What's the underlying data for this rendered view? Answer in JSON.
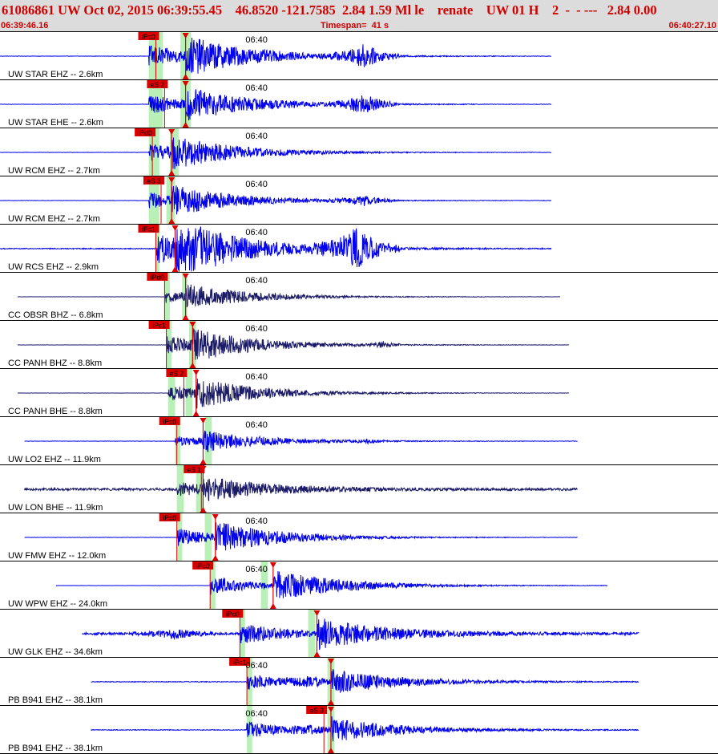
{
  "header": {
    "title": "61086861 UW Oct 02, 2015 06:39:55.45    46.8520 -121.7585  2.84 1.59 Ml le    renate    UW 01 H    2  -  - ---   2.84 0.00",
    "start_time": "06:39:46.16",
    "timespan": "Timespan=  41 s",
    "end_time": "06:40:27.10"
  },
  "chart_data": {
    "type": "line",
    "title": "",
    "x_axis": {
      "start": "06:39:46.16",
      "end": "06:40:27.10",
      "span_s": 41,
      "minute_mark": "06:40",
      "minute_mark_offset_s": 13.84
    },
    "colors": {
      "trace_uw": "#0000ee",
      "trace_cc": "#1a1a66",
      "pick": "#dd0000",
      "pick_window": "#b8f0b8",
      "separator": "#000000"
    },
    "traces": [
      {
        "label": "UW STAR EHZ -- 2.6km",
        "time_label": "06:40",
        "pick_labels": [
          "iPc0"
        ],
        "pick_times": [
          8.9
        ],
        "windows": [
          [
            8.5,
            9.3
          ],
          [
            10.3,
            10.9
          ]
        ],
        "s_arrival": 10.6,
        "data_start": 0.0,
        "data_end": 31.5,
        "amp": 0.7,
        "noise": 0.006,
        "events": [
          [
            20.8,
            0.5,
            2.0
          ]
        ],
        "color": "trace_uw"
      },
      {
        "label": "UW STAR EHE -- 2.6km",
        "time_label": "06:40",
        "pick_labels": [
          "eS 2"
        ],
        "pick_times": [
          9.4
        ],
        "windows": [
          [
            8.5,
            9.3
          ],
          [
            10.3,
            10.9
          ]
        ],
        "s_arrival": 10.6,
        "data_start": 0.0,
        "data_end": 31.5,
        "amp": 0.6,
        "noise": 0.006,
        "events": [
          [
            20.8,
            0.45,
            2.0
          ]
        ],
        "color": "trace_uw"
      },
      {
        "label": "UW RCM EHZ -- 2.7km",
        "time_label": "06:40",
        "pick_labels": [
          "iPd0"
        ],
        "pick_times": [
          8.7
        ],
        "windows": [
          [
            8.5,
            9.1
          ],
          [
            9.7,
            10.2
          ]
        ],
        "s_arrival": 9.8,
        "data_start": 0.0,
        "data_end": 31.5,
        "amp": 0.55,
        "noise": 0.006,
        "events": [],
        "color": "trace_uw"
      },
      {
        "label": "UW RCM EHZ -- 2.7km",
        "time_label": "06:40",
        "pick_labels": [
          "eS 3"
        ],
        "pick_times": [
          9.2
        ],
        "windows": [
          [
            8.5,
            9.1
          ],
          [
            9.5,
            10.0
          ]
        ],
        "s_arrival": 9.8,
        "data_start": 0.0,
        "data_end": 31.5,
        "amp": 0.5,
        "noise": 0.006,
        "events": [
          [
            20.8,
            0.2,
            2.0
          ]
        ],
        "color": "trace_uw"
      },
      {
        "label": "UW RCS EHZ -- 2.9km",
        "time_label": "06:40",
        "pick_labels": [
          "iPc1"
        ],
        "pick_times": [
          8.9
        ],
        "windows": [
          [
            8.9,
            9.1
          ]
        ],
        "s_arrival": 10.0,
        "data_start": 0.0,
        "data_end": 31.5,
        "amp": 1.0,
        "noise": 0.02,
        "events": [
          [
            20.3,
            0.85,
            2.5
          ]
        ],
        "color": "trace_uw"
      },
      {
        "label": "CC OBSR BHZ -- 6.8km",
        "time_label": "06:40",
        "pick_labels": [
          "iPd0"
        ],
        "pick_times": [
          9.4
        ],
        "windows": [
          [
            9.4,
            9.7
          ],
          [
            10.4,
            10.7
          ]
        ],
        "s_arrival": 10.6,
        "data_start": 1.0,
        "data_end": 32.0,
        "amp": 0.4,
        "noise": 0.004,
        "events": [],
        "color": "trace_cc"
      },
      {
        "label": "CC PANH BHZ -- 8.8km",
        "time_label": "06:40",
        "pick_labels": [
          "iPc1"
        ],
        "pick_times": [
          9.5
        ],
        "windows": [
          [
            9.5,
            9.8
          ],
          [
            10.8,
            11.2
          ]
        ],
        "s_arrival": 11.0,
        "data_start": 1.0,
        "data_end": 32.5,
        "amp": 0.55,
        "noise": 0.004,
        "events": [
          [
            21.9,
            0.12,
            1.0
          ]
        ],
        "color": "trace_cc"
      },
      {
        "label": "CC PANH BHE -- 8.8km",
        "time_label": "06:40",
        "pick_labels": [
          "eS 2"
        ],
        "pick_times": [
          10.5
        ],
        "windows": [
          [
            9.6,
            10.0
          ],
          [
            10.6,
            11.0
          ]
        ],
        "s_arrival": 11.2,
        "data_start": 1.0,
        "data_end": 32.5,
        "amp": 0.5,
        "noise": 0.004,
        "events": [],
        "color": "trace_cc"
      },
      {
        "label": "UW LO2 EHZ -- 11.9km",
        "time_label": "06:40",
        "pick_labels": [
          "iPc0"
        ],
        "pick_times": [
          10.1
        ],
        "windows": [
          [
            10.0,
            10.3
          ],
          [
            11.7,
            12.1
          ]
        ],
        "s_arrival": 11.6,
        "data_start": 1.4,
        "data_end": 33.0,
        "amp": 0.35,
        "noise": 0.006,
        "events": [
          [
            21.0,
            0.08,
            1.0
          ]
        ],
        "color": "trace_uw"
      },
      {
        "label": "UW LON BHE -- 11.9km",
        "time_label": "",
        "pick_labels": [
          "eS 1"
        ],
        "pick_times": [
          11.5
        ],
        "windows": [
          [
            10.1,
            10.5
          ],
          [
            11.2,
            11.6
          ]
        ],
        "s_arrival": 11.6,
        "data_start": 1.4,
        "data_end": 33.0,
        "amp": 0.4,
        "noise": 0.05,
        "events": [],
        "color": "trace_cc"
      },
      {
        "label": "UW FMW EHZ -- 12.0km",
        "time_label": "06:40",
        "pick_labels": [
          "iPc0"
        ],
        "pick_times": [
          10.1
        ],
        "windows": [
          [
            10.1,
            10.4
          ],
          [
            11.7,
            12.1
          ]
        ],
        "s_arrival": 12.3,
        "data_start": 1.4,
        "data_end": 33.0,
        "amp": 0.55,
        "noise": 0.006,
        "events": [],
        "color": "trace_uw"
      },
      {
        "label": "UW WPW EHZ -- 24.0km",
        "time_label": "06:40",
        "pick_labels": [
          "iPc0"
        ],
        "pick_times": [
          12.0
        ],
        "windows": [
          [
            12.0,
            12.3
          ],
          [
            14.9,
            15.3
          ]
        ],
        "s_arrival": 15.6,
        "data_start": 3.2,
        "data_end": 34.7,
        "amp": 0.6,
        "noise": 0.005,
        "events": [],
        "color": "trace_uw"
      },
      {
        "label": "UW GLK EHZ -- 34.6km",
        "time_label": "",
        "pick_labels": [
          "iPc0"
        ],
        "pick_times": [
          13.7
        ],
        "windows": [
          [
            13.7,
            14.0
          ],
          [
            17.6,
            18.0
          ]
        ],
        "s_arrival": 18.1,
        "data_start": 4.7,
        "data_end": 36.5,
        "amp": 0.6,
        "noise": 0.05,
        "events": [
          [
            10.0,
            0.2,
            2.5
          ]
        ],
        "color": "trace_uw"
      },
      {
        "label": "PB B941 EHZ -- 38.1km",
        "time_label": "06:40",
        "pick_labels": [
          "iPc1"
        ],
        "pick_times": [
          14.1
        ],
        "windows": [
          [
            14.1,
            14.4
          ],
          [
            18.7,
            19.1
          ]
        ],
        "s_arrival": 18.9,
        "data_start": 5.2,
        "data_end": 36.5,
        "amp": 0.5,
        "noise": 0.015,
        "events": [
          [
            17.8,
            0.2,
            1.5
          ]
        ],
        "color": "trace_uw"
      },
      {
        "label": "PB B941 EHZ -- 38.1km",
        "time_label": "06:40",
        "pick_labels": [
          "eS 3"
        ],
        "pick_times": [
          18.5
        ],
        "windows": [
          [
            14.1,
            14.4
          ],
          [
            18.7,
            19.1
          ]
        ],
        "s_arrival": 18.9,
        "data_start": 5.2,
        "data_end": 36.5,
        "amp": 0.5,
        "noise": 0.015,
        "events": [
          [
            17.8,
            0.15,
            1.5
          ]
        ],
        "color": "trace_uw"
      }
    ]
  }
}
